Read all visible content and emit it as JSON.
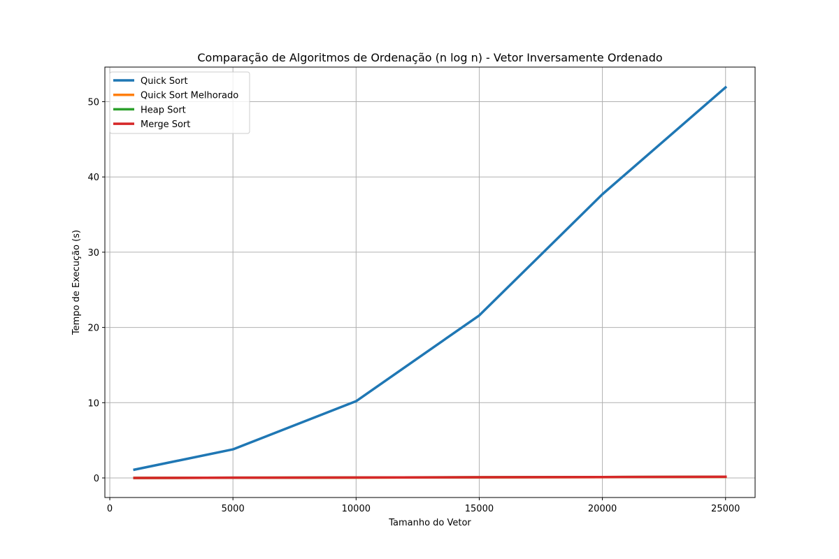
{
  "chart_data": {
    "type": "line",
    "title": "Comparação de Algoritmos de Ordenação (n log n) - Vetor Inversamente Ordenado",
    "xlabel": "Tamanho do Vetor",
    "ylabel": "Tempo de Execução (s)",
    "x": [
      1000,
      5000,
      10000,
      15000,
      20000,
      25000
    ],
    "xlim": [
      -200,
      26200
    ],
    "ylim": [
      -2.6,
      54.6
    ],
    "xticks": [
      0,
      5000,
      10000,
      15000,
      20000,
      25000
    ],
    "yticks": [
      0,
      10,
      20,
      30,
      40,
      50
    ],
    "grid": true,
    "legend_position": "upper-left",
    "series": [
      {
        "name": "Quick Sort",
        "color": "#1f77b4",
        "values": [
          1.1,
          3.8,
          10.2,
          21.6,
          37.7,
          51.9
        ]
      },
      {
        "name": "Quick Sort Melhorado",
        "color": "#ff7f0e",
        "values": [
          0.005,
          0.025,
          0.05,
          0.08,
          0.11,
          0.14
        ]
      },
      {
        "name": "Heap Sort",
        "color": "#2ca02c",
        "values": [
          0.005,
          0.03,
          0.06,
          0.09,
          0.12,
          0.15
        ]
      },
      {
        "name": "Merge Sort",
        "color": "#d62728",
        "values": [
          0.005,
          0.03,
          0.06,
          0.09,
          0.12,
          0.16
        ]
      }
    ]
  }
}
